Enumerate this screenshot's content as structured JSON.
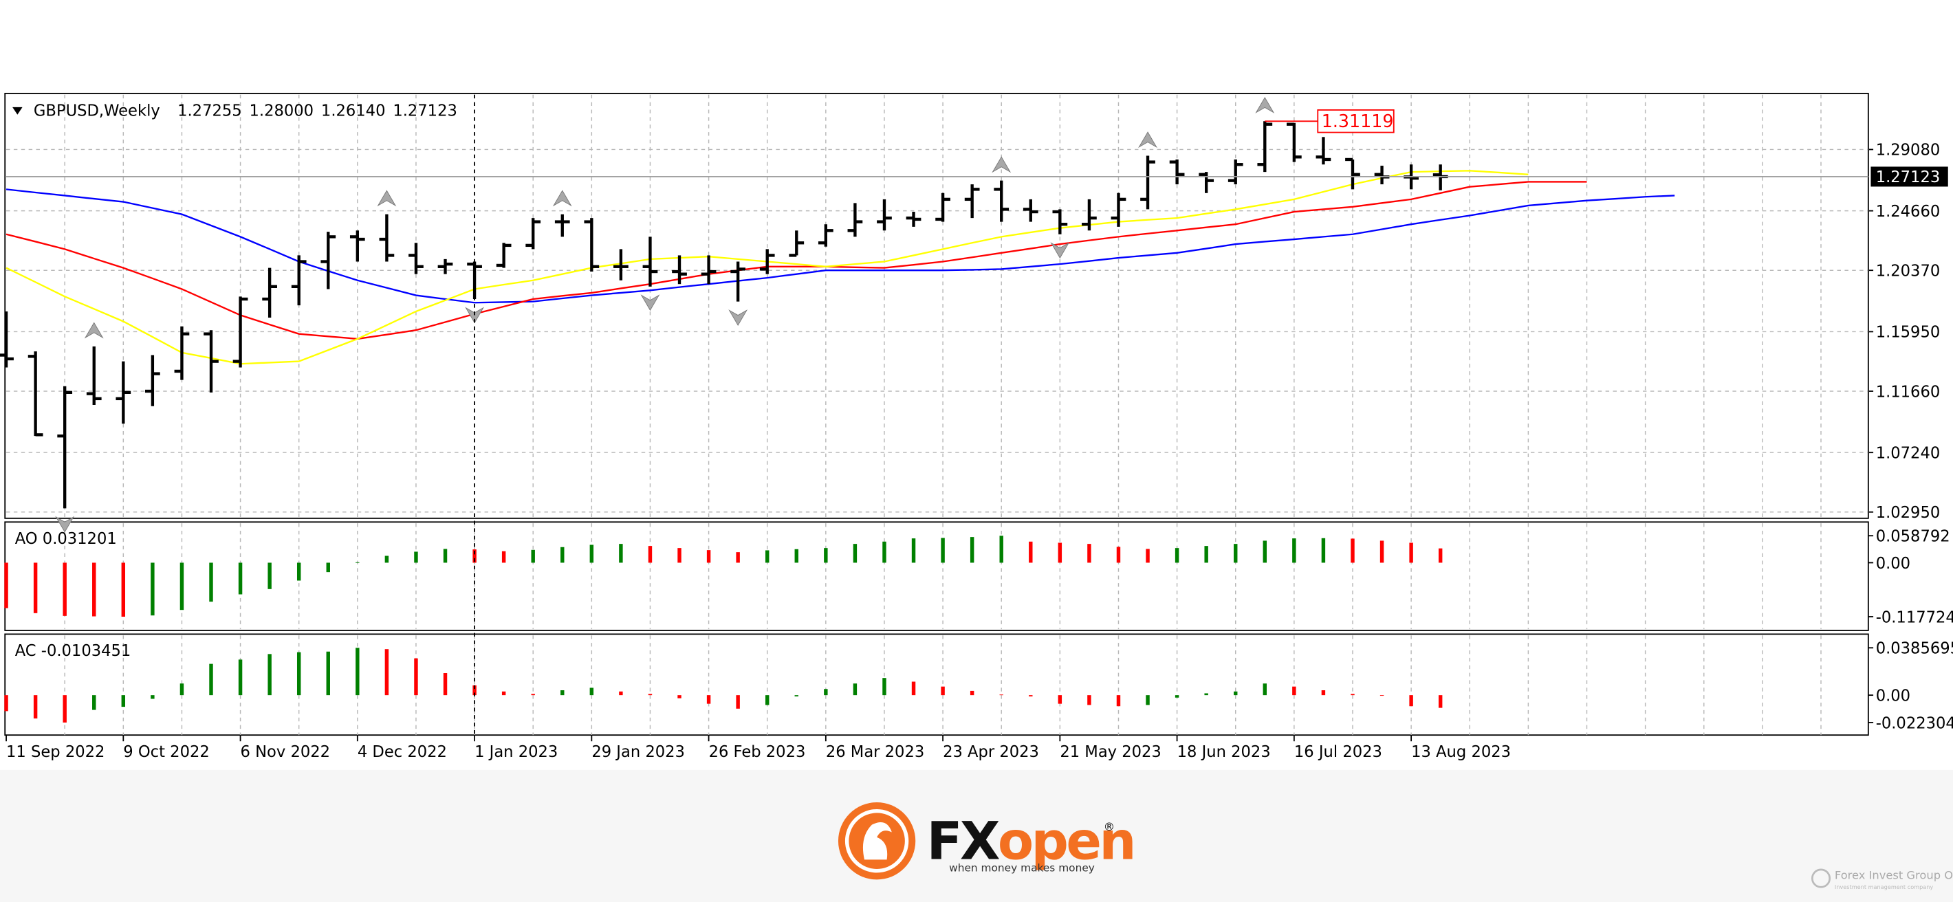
{
  "chart_data": [
    {
      "type": "ohlc",
      "title": "GBPUSD,Weekly",
      "header_values": [
        "1.27255",
        "1.28000",
        "1.26140",
        "1.27123"
      ],
      "categories": [
        "11 Sep 2022",
        null,
        null,
        null,
        "9 Oct 2022",
        null,
        null,
        null,
        "6 Nov 2022",
        null,
        null,
        null,
        "4 Dec 2022",
        null,
        null,
        null,
        "1 Jan 2023",
        null,
        null,
        null,
        "29 Jan 2023",
        null,
        null,
        null,
        "26 Feb 2023",
        null,
        null,
        null,
        "26 Mar 2023",
        null,
        null,
        null,
        "23 Apr 2023",
        null,
        null,
        null,
        "21 May 2023",
        null,
        null,
        null,
        "18 Jun 2023",
        null,
        null,
        null,
        "16 Jul 2023",
        null,
        null,
        null,
        "13 Aug 2023",
        null,
        null,
        null,
        null,
        null,
        null,
        null,
        null,
        null
      ],
      "open": [
        1.1426,
        1.1417,
        1.0843,
        1.1148,
        1.1112,
        1.1166,
        1.131,
        1.1579,
        1.1381,
        1.183,
        1.192,
        1.21,
        1.2279,
        1.2261,
        1.2145,
        1.2064,
        1.2082,
        1.2073,
        1.2217,
        1.2387,
        1.2387,
        1.2064,
        1.2064,
        1.2028,
        1.201,
        1.2028,
        1.2046,
        1.2145,
        1.2235,
        1.2324,
        1.2387,
        1.2414,
        1.2405,
        1.2549,
        1.2621,
        1.2477,
        1.2459,
        1.2369,
        1.2414,
        1.2549,
        1.2818,
        1.2728,
        1.2684,
        1.28,
        1.309,
        1.2854,
        1.2836,
        1.2728,
        1.271,
        1.27255,
        null,
        null,
        null,
        null,
        null,
        null,
        null,
        null
      ],
      "high": [
        1.1741,
        1.1453,
        1.1202,
        1.1489,
        1.1381,
        1.1426,
        1.1633,
        1.1606,
        1.1848,
        1.2055,
        1.2145,
        1.2315,
        1.2324,
        1.2441,
        1.2235,
        1.2118,
        1.21,
        1.2235,
        1.2414,
        1.2441,
        1.2414,
        1.219,
        1.2279,
        1.2145,
        1.2145,
        1.21,
        1.219,
        1.2324,
        1.2369,
        1.2522,
        1.2549,
        1.2459,
        1.2594,
        1.2657,
        1.2684,
        1.2549,
        1.2477,
        1.2549,
        1.2594,
        1.2863,
        1.2836,
        1.2746,
        1.2836,
        1.31119,
        1.31,
        1.2998,
        1.2836,
        1.2791,
        1.28,
        1.28,
        null,
        null,
        null,
        null,
        null,
        null,
        null,
        null
      ],
      "low": [
        1.1337,
        1.0843,
        1.0322,
        1.1067,
        1.0932,
        1.1058,
        1.1247,
        1.1157,
        1.1337,
        1.1696,
        1.1785,
        1.1902,
        1.21,
        1.21,
        1.201,
        1.201,
        1.183,
        1.2055,
        1.219,
        1.2279,
        1.2028,
        1.1965,
        1.192,
        1.1938,
        1.1938,
        1.1812,
        1.201,
        1.2145,
        1.2208,
        1.2279,
        1.2324,
        1.2351,
        1.2387,
        1.2414,
        1.2387,
        1.2387,
        1.2297,
        1.2324,
        1.2351,
        1.2477,
        1.2657,
        1.2594,
        1.2657,
        1.2746,
        1.2818,
        1.28,
        1.2621,
        1.2657,
        1.2621,
        1.2614,
        null,
        null,
        null,
        null,
        null,
        null,
        null,
        null
      ],
      "close": [
        1.1399,
        1.0852,
        1.1157,
        1.1112,
        1.1157,
        1.1292,
        1.1579,
        1.1381,
        1.183,
        1.192,
        1.21,
        1.2279,
        1.2261,
        1.2145,
        1.2064,
        1.2082,
        1.2064,
        1.2217,
        1.2387,
        1.2387,
        1.2064,
        1.2064,
        1.2028,
        1.201,
        1.2028,
        1.2046,
        1.2145,
        1.2235,
        1.2324,
        1.2387,
        1.2414,
        1.2405,
        1.2549,
        1.2621,
        1.2477,
        1.2459,
        1.2369,
        1.2414,
        1.2549,
        1.2818,
        1.2728,
        1.2684,
        1.28,
        1.309,
        1.2854,
        1.2836,
        1.2728,
        1.271,
        1.2701,
        1.27123,
        null,
        null,
        null,
        null,
        null,
        null,
        null,
        null
      ],
      "color": "#000000",
      "series": [
        {
          "color": "#0000ff",
          "values": [
            1.2621,
            1.2598,
            1.2576,
            1.2553,
            1.2531,
            1.2486,
            1.2441,
            1.236,
            1.2279,
            1.219,
            1.21,
            1.2032,
            1.1965,
            1.1911,
            1.1857,
            1.183,
            1.1804,
            1.1808,
            1.1812,
            1.1835,
            1.1857,
            1.1875,
            1.1893,
            1.1916,
            1.1938,
            1.1961,
            1.1983,
            1.201,
            1.2037,
            1.2037,
            1.2037,
            1.2037,
            1.2037,
            1.2041,
            1.2046,
            1.2064,
            1.2082,
            1.2104,
            1.2127,
            1.2145,
            1.2163,
            1.2194,
            1.2226,
            1.2244,
            1.2261,
            1.2279,
            1.2297,
            1.2333,
            1.2369,
            1.2401,
            1.2432,
            1.2468,
            1.2504,
            1.2522,
            1.254,
            1.2553,
            1.2567,
            1.2576
          ]
        },
        {
          "color": "#ff0000",
          "values": [
            1.2297,
            1.2244,
            1.219,
            1.2122,
            1.2055,
            1.1979,
            1.1902,
            1.1808,
            1.1714,
            1.1646,
            1.1579,
            1.1561,
            1.1543,
            1.1574,
            1.1606,
            1.1664,
            1.1723,
            1.1776,
            1.183,
            1.1853,
            1.1875,
            1.1907,
            1.1938,
            1.1974,
            1.201,
            1.2037,
            1.2064,
            1.2064,
            1.2064,
            1.2059,
            1.2055,
            1.2077,
            1.21,
            1.2131,
            1.2163,
            1.2194,
            1.2226,
            1.2253,
            1.2279,
            1.2302,
            1.2324,
            1.2347,
            1.2369,
            1.2414,
            1.2459,
            1.2477,
            1.2495,
            1.2522,
            1.2549,
            1.2594,
            1.2639,
            1.2657,
            1.2675,
            1.2675,
            1.2675,
            null,
            null,
            null
          ]
        },
        {
          "color": "#ffff00",
          "values": [
            1.2055,
            1.1952,
            1.1848,
            1.1759,
            1.1669,
            1.1557,
            1.1444,
            1.1404,
            1.1363,
            1.1372,
            1.1381,
            1.1462,
            1.1543,
            1.1642,
            1.1741,
            1.1821,
            1.1902,
            1.1934,
            1.1965,
            1.201,
            1.2055,
            1.2086,
            1.2118,
            1.2127,
            1.2136,
            1.2118,
            1.21,
            1.2082,
            1.2064,
            1.2082,
            1.21,
            1.2145,
            1.219,
            1.2235,
            1.2279,
            1.2311,
            1.2342,
            1.2365,
            1.2387,
            1.2401,
            1.2414,
            1.2446,
            1.2477,
            1.2513,
            1.2549,
            1.2603,
            1.2657,
            1.2702,
            1.2746,
            1.2751,
            1.2755,
            1.2742,
            1.2728,
            null,
            null,
            null,
            null,
            null
          ]
        }
      ],
      "ylim": [
        1.0259,
        1.3303
      ],
      "yticks": [
        {
          "value": 1.2908,
          "label": "1.29080"
        },
        {
          "value": 1.2466,
          "label": "1.24660"
        },
        {
          "value": 1.2037,
          "label": "1.20370"
        },
        {
          "value": 1.1595,
          "label": "1.15950"
        },
        {
          "value": 1.1166,
          "label": "1.11660"
        },
        {
          "value": 1.0724,
          "label": "1.07240"
        },
        {
          "value": 1.0295,
          "label": "1.02950"
        }
      ],
      "grid": true,
      "last_price": {
        "value": 1.27123,
        "label": "1.27123"
      },
      "max_price": {
        "value": 1.31119,
        "label": "1.31119"
      },
      "fractals_up": [
        3,
        13,
        19,
        34,
        39,
        43
      ],
      "fractals_down": [
        2,
        16,
        22,
        25,
        36
      ]
    },
    {
      "type": "bar",
      "title": "AO 0.031201",
      "values": [
        -0.099,
        -0.11,
        -0.116,
        -0.117,
        -0.117724,
        -0.115,
        -0.103,
        -0.085,
        -0.069,
        -0.0575,
        -0.039,
        -0.0205,
        0.001,
        0.015,
        0.024,
        0.03,
        0.029,
        0.025,
        0.028,
        0.034,
        0.039,
        0.041,
        0.0365,
        0.032,
        0.0275,
        0.023,
        0.027,
        0.0295,
        0.032,
        0.041,
        0.046,
        0.053,
        0.054,
        0.056,
        0.058792,
        0.046,
        0.0435,
        0.041,
        0.0345,
        0.03,
        0.032,
        0.0365,
        0.041,
        0.048,
        0.053,
        0.0535,
        0.0525,
        0.048,
        0.0435,
        0.031201,
        null,
        null,
        null,
        null,
        null,
        null,
        null,
        null
      ],
      "ylim": [
        -0.1449,
        0.086
      ],
      "yticks": [
        {
          "value": 0.058792,
          "label": "0.058792"
        },
        {
          "value": 0,
          "label": "0.00"
        },
        {
          "value": -0.117724,
          "label": "-0.117724"
        }
      ],
      "up_color": "#008000",
      "down_color": "#ff0000"
    },
    {
      "type": "bar",
      "title": "AC -0.0103451",
      "values": [
        -0.013,
        -0.019,
        -0.022304,
        -0.012,
        -0.0095,
        -0.003,
        0.0095,
        0.0255,
        0.029,
        0.0335,
        0.035,
        0.0355,
        0.0385695,
        0.0375,
        0.03,
        0.018,
        0.008,
        0.003,
        0.001,
        0.004,
        0.006,
        0.003,
        0.001,
        -0.0025,
        -0.007,
        -0.011,
        -0.008,
        -0.001,
        0.005,
        0.0095,
        0.014,
        0.011,
        0.007,
        0.0035,
        0.0005,
        -0.001,
        -0.007,
        -0.008,
        -0.009,
        -0.008,
        -0.002,
        0.0015,
        0.003,
        0.0095,
        0.007,
        0.004,
        0.001,
        -0.0005,
        -0.009,
        -0.0103451,
        null,
        null,
        null,
        null,
        null,
        null,
        null,
        null
      ],
      "ylim": [
        -0.0325,
        0.0487
      ],
      "yticks": [
        {
          "value": 0.0385695,
          "label": "0.0385695"
        },
        {
          "value": 0,
          "label": "0.00"
        },
        {
          "value": -0.022304,
          "label": "-0.022304"
        }
      ],
      "up_color": "#008000",
      "down_color": "#ff0000"
    }
  ],
  "footer": {
    "brand": [
      "FX",
      "open"
    ],
    "registered": "®",
    "tagline": "when money makes money",
    "company": "Forex Invest Group OU",
    "company_sub": "Investment management company"
  }
}
